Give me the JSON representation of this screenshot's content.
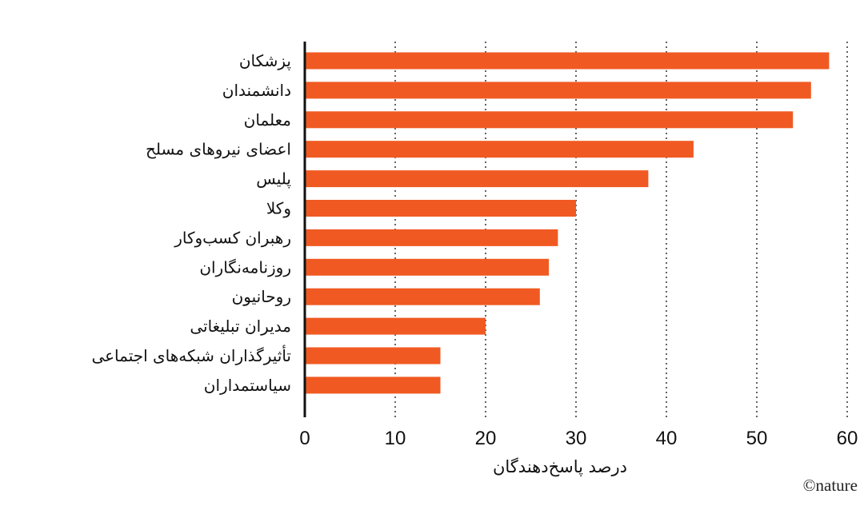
{
  "chart_data": {
    "type": "bar",
    "orientation": "horizontal",
    "categories": [
      "پزشکان",
      "دانشمندان",
      "معلمان",
      "اعضای نیروهای مسلح",
      "پلیس",
      "وکلا",
      "رهبران کسب‌وکار",
      "روزنامه‌نگاران",
      "روحانیون",
      "مدیران تبلیغاتی",
      "تأثیرگذاران شبکه‌های اجتماعی",
      "سیاستمداران"
    ],
    "values": [
      58,
      56,
      54,
      43,
      38,
      30,
      28,
      27,
      26,
      20,
      15,
      15
    ],
    "xlabel": "درصد پاسخ‌دهندگان",
    "ylabel": "",
    "xlim": [
      0,
      60
    ],
    "xticks": [
      "0",
      "10",
      "20",
      "30",
      "40",
      "50",
      "60"
    ],
    "grid": "vertical-dotted",
    "bar_color": "#f05a22",
    "credit": "©nature"
  }
}
